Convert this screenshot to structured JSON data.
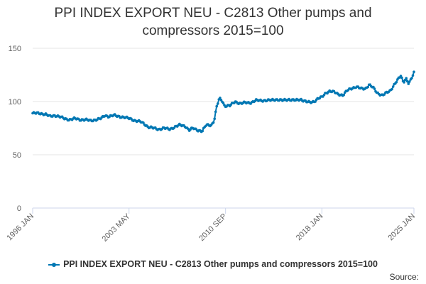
{
  "chart_data": {
    "type": "line",
    "title_line1": "PPI INDEX EXPORT NEU - C2813 Other pumps and",
    "title_line2": "compressors 2015=100",
    "series_name": "PPI INDEX EXPORT NEU - C2813 Other pumps and compressors 2015=100",
    "series_color": "#0077b3",
    "ylim": [
      0,
      150
    ],
    "yticks": [
      "0",
      "50",
      "100",
      "150"
    ],
    "xrange": [
      1996.0,
      2025.0
    ],
    "xticks": [
      {
        "label": "1996 JAN",
        "x": 1996.0
      },
      {
        "label": "2003 MAY",
        "x": 2003.33
      },
      {
        "label": "2010 SEP",
        "x": 2010.67
      },
      {
        "label": "2018 JAN",
        "x": 2018.0
      },
      {
        "label": "2025 JAN",
        "x": 2025.0
      }
    ],
    "keypoints": [
      [
        1996.0,
        89
      ],
      [
        1996.5,
        89
      ],
      [
        1997.0,
        88
      ],
      [
        1997.3,
        86
      ],
      [
        1997.7,
        87
      ],
      [
        1998.0,
        86
      ],
      [
        1998.4,
        84
      ],
      [
        1998.8,
        83
      ],
      [
        1999.2,
        84
      ],
      [
        1999.6,
        83
      ],
      [
        2000.0,
        83
      ],
      [
        2000.4,
        82
      ],
      [
        2000.8,
        83
      ],
      [
        2001.2,
        84
      ],
      [
        2001.5,
        87
      ],
      [
        2001.8,
        86
      ],
      [
        2002.2,
        87
      ],
      [
        2002.6,
        86
      ],
      [
        2003.0,
        85
      ],
      [
        2003.4,
        84
      ],
      [
        2003.8,
        82
      ],
      [
        2004.2,
        81
      ],
      [
        2004.5,
        79
      ],
      [
        2004.8,
        76
      ],
      [
        2005.2,
        75
      ],
      [
        2005.6,
        74
      ],
      [
        2006.0,
        75
      ],
      [
        2006.4,
        74
      ],
      [
        2006.8,
        76
      ],
      [
        2007.2,
        78
      ],
      [
        2007.6,
        77
      ],
      [
        2007.9,
        73
      ],
      [
        2008.2,
        75
      ],
      [
        2008.6,
        73
      ],
      [
        2008.9,
        72
      ],
      [
        2009.2,
        78
      ],
      [
        2009.6,
        78
      ],
      [
        2009.8,
        82
      ],
      [
        2010.0,
        95
      ],
      [
        2010.2,
        103
      ],
      [
        2010.4,
        101
      ],
      [
        2010.6,
        96
      ],
      [
        2011.0,
        96
      ],
      [
        2011.4,
        100
      ],
      [
        2011.8,
        98
      ],
      [
        2012.2,
        99
      ],
      [
        2012.6,
        99
      ],
      [
        2013.0,
        101
      ],
      [
        2013.5,
        101
      ],
      [
        2014.0,
        101
      ],
      [
        2014.5,
        102
      ],
      [
        2015.0,
        101
      ],
      [
        2015.5,
        102
      ],
      [
        2016.0,
        101
      ],
      [
        2016.4,
        102
      ],
      [
        2016.8,
        100
      ],
      [
        2017.1,
        99
      ],
      [
        2017.4,
        100
      ],
      [
        2017.7,
        103
      ],
      [
        2018.0,
        104
      ],
      [
        2018.3,
        108
      ],
      [
        2018.6,
        110
      ],
      [
        2018.9,
        109
      ],
      [
        2019.2,
        107
      ],
      [
        2019.6,
        106
      ],
      [
        2019.9,
        110
      ],
      [
        2020.2,
        112
      ],
      [
        2020.6,
        114
      ],
      [
        2021.0,
        112
      ],
      [
        2021.3,
        112
      ],
      [
        2021.6,
        116
      ],
      [
        2021.9,
        113
      ],
      [
        2022.2,
        108
      ],
      [
        2022.6,
        106
      ],
      [
        2022.9,
        108
      ],
      [
        2023.2,
        110
      ],
      [
        2023.5,
        116
      ],
      [
        2023.8,
        121
      ],
      [
        2024.0,
        124
      ],
      [
        2024.2,
        118
      ],
      [
        2024.4,
        122
      ],
      [
        2024.6,
        117
      ],
      [
        2024.8,
        121
      ],
      [
        2025.0,
        127
      ]
    ]
  },
  "footer": {
    "source_label": "Source:"
  }
}
